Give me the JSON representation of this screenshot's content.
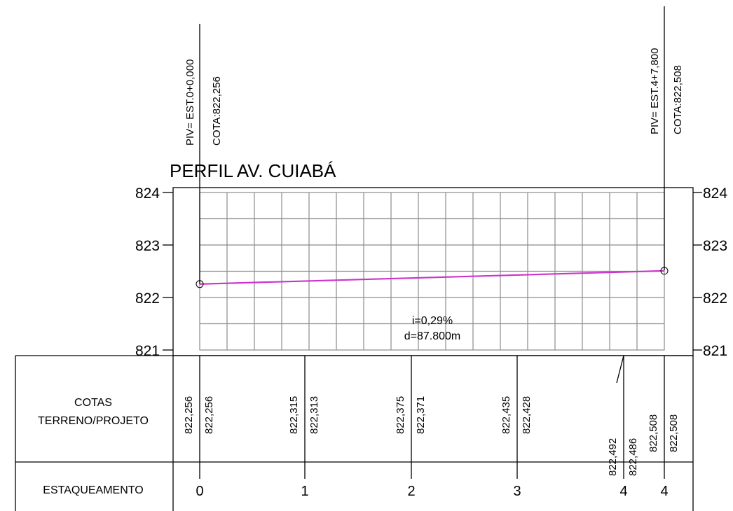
{
  "title": "PERFIL AV. CUIABÁ",
  "colors": {
    "profile_line": "#cc33cc",
    "grid": "#8c8c8c",
    "lines": "#000000"
  },
  "piv_start": {
    "station": "PIV= EST.0+0,000",
    "elevation": "COTA:822,256"
  },
  "piv_end": {
    "station": "PIV= EST.4+7,800",
    "elevation": "COTA:822,508"
  },
  "slope": {
    "grade": "i=0,29%",
    "distance": "d=87.800m"
  },
  "table": {
    "row_cotas_label_1": "COTAS",
    "row_cotas_label_2": "TERRENO/PROJETO",
    "row_estaqueamento_label": "ESTAQUEAMENTO",
    "cotas": [
      {
        "terreno": "822,256",
        "projeto": "822,256"
      },
      {
        "terreno": "822,315",
        "projeto": "822,313"
      },
      {
        "terreno": "822,375",
        "projeto": "822,371"
      },
      {
        "terreno": "822,435",
        "projeto": "822,428"
      },
      {
        "terreno": "822,492",
        "projeto": "822,486"
      },
      {
        "terreno": "822,508",
        "projeto": "822,508"
      }
    ],
    "stations": [
      "0",
      "1",
      "2",
      "3",
      "4",
      "4"
    ]
  },
  "chart_data": {
    "type": "line",
    "title": "PERFIL AV. CUIABÁ",
    "xlabel": "",
    "ylabel": "",
    "x": [
      0,
      20,
      40,
      60,
      80,
      87.8
    ],
    "series": [
      {
        "values": [
          822.256,
          822.313,
          822.371,
          822.428,
          822.486,
          822.508
        ]
      }
    ],
    "terrain": [
      822.256,
      822.315,
      822.375,
      822.435,
      822.492,
      822.508
    ],
    "ylim": [
      821,
      824
    ],
    "yticks": [
      "821",
      "822",
      "823",
      "824"
    ],
    "grid": true
  }
}
